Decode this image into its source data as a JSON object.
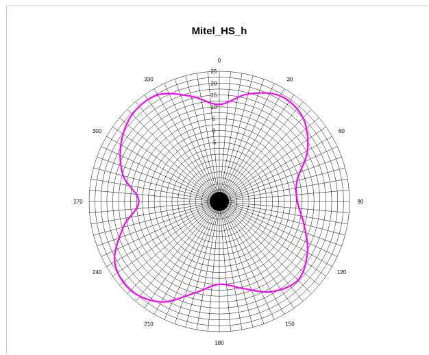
{
  "chart_data": {
    "type": "polar-line",
    "title": "Mitel_HS_h",
    "series_color": "#ff00ff",
    "grid_color": "#000000",
    "r_ticks": [
      -5,
      0,
      5,
      10,
      15,
      20,
      25
    ],
    "r_tick_labels": [
      "-5",
      "0",
      "5",
      "10",
      "15",
      "20",
      "25"
    ],
    "r_range": [
      -30,
      25
    ],
    "angle_labels": [
      {
        "angle": 0,
        "text": "0"
      },
      {
        "angle": 30,
        "text": "30"
      },
      {
        "angle": 60,
        "text": "60"
      },
      {
        "angle": 90,
        "text": "90"
      },
      {
        "angle": 120,
        "text": "120"
      },
      {
        "angle": 150,
        "text": "150"
      },
      {
        "angle": 180,
        "text": "180"
      },
      {
        "angle": 210,
        "text": "210"
      },
      {
        "angle": 240,
        "text": "240"
      },
      {
        "angle": 270,
        "text": "270"
      },
      {
        "angle": 300,
        "text": "300"
      },
      {
        "angle": 330,
        "text": "330"
      }
    ],
    "series": [
      {
        "angles": [
          0,
          15,
          30,
          45,
          60,
          75,
          90,
          105,
          120,
          135,
          150,
          165,
          180,
          195,
          210,
          225,
          240,
          255,
          270,
          285,
          300,
          315,
          330,
          345
        ],
        "values": [
          11,
          17,
          21.5,
          20,
          13,
          4,
          3,
          7,
          13,
          17,
          14,
          8,
          5,
          10,
          19,
          23,
          21,
          12,
          4,
          12,
          18,
          22,
          22,
          16
        ]
      }
    ]
  }
}
